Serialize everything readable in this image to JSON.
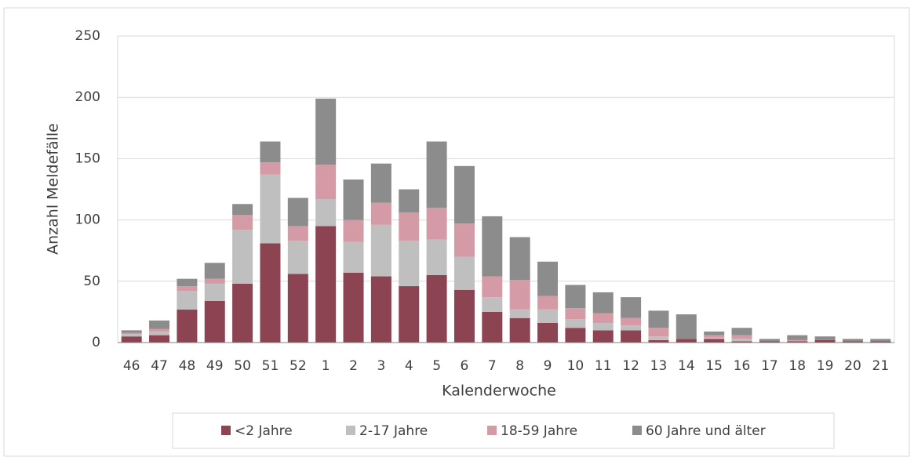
{
  "chart_data": {
    "type": "stacked_bar",
    "categories": [
      "46",
      "47",
      "48",
      "49",
      "50",
      "51",
      "52",
      "1",
      "2",
      "3",
      "4",
      "5",
      "6",
      "7",
      "8",
      "9",
      "10",
      "11",
      "12",
      "13",
      "14",
      "15",
      "16",
      "17",
      "18",
      "19",
      "20",
      "21"
    ],
    "series": [
      {
        "name": "<2 Jahre",
        "color": "#8c4352",
        "values": [
          5,
          6,
          27,
          34,
          48,
          81,
          56,
          95,
          57,
          54,
          46,
          55,
          43,
          25,
          20,
          16,
          12,
          10,
          10,
          2,
          3,
          3,
          1,
          1,
          1,
          2,
          1,
          1
        ]
      },
      {
        "name": "2-17 Jahre",
        "color": "#bfbfbf",
        "values": [
          2,
          3,
          15,
          14,
          44,
          56,
          27,
          22,
          25,
          42,
          37,
          29,
          27,
          12,
          7,
          11,
          7,
          6,
          4,
          3,
          0,
          1,
          2,
          0,
          0,
          0,
          0,
          0
        ]
      },
      {
        "name": "18-59 Jahre",
        "color": "#d49ba6",
        "values": [
          1,
          2,
          4,
          4,
          12,
          10,
          12,
          28,
          18,
          18,
          23,
          26,
          27,
          17,
          24,
          11,
          9,
          8,
          6,
          7,
          0,
          2,
          3,
          0,
          1,
          0,
          0,
          0
        ]
      },
      {
        "name": "60 Jahre und älter",
        "color": "#8c8c8c",
        "values": [
          2,
          7,
          6,
          13,
          9,
          17,
          23,
          54,
          33,
          32,
          19,
          54,
          47,
          49,
          35,
          28,
          19,
          17,
          17,
          14,
          20,
          3,
          6,
          2,
          4,
          3,
          2,
          2
        ]
      }
    ],
    "x_label": "Kalenderwoche",
    "y_label": "Anzahl Meldefälle",
    "ylim": [
      0,
      250
    ],
    "yticks": [
      0,
      50,
      100,
      150,
      200,
      250
    ],
    "grid": true,
    "legend": "bottom"
  }
}
